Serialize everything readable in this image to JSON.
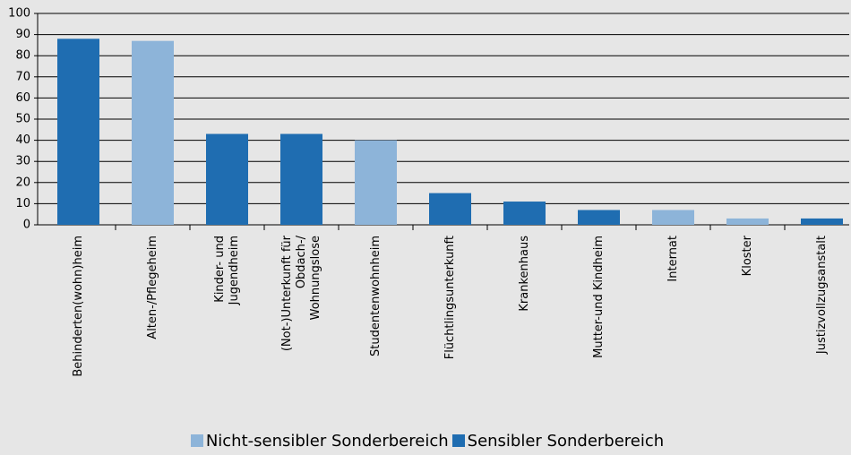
{
  "chart_data": {
    "type": "bar",
    "categories": [
      "Behinderten(wohn)heim",
      "Alten-/Pflegeheim",
      "Kinder- und\nJugendheim",
      "(Not-)Unterkunft für\nObdach-/\nWohnungslose",
      "Studentenwohnheim",
      "Flüchtlingsunterkunft",
      "Krankenhaus",
      "Mutter-und Kindheim",
      "Internat",
      "Kloster",
      "Justizvollzugsanstalt"
    ],
    "series": [
      {
        "name": "Nicht-sensibler Sonderbereich",
        "color": "#8db4d9",
        "values": [
          null,
          87,
          null,
          null,
          40,
          null,
          null,
          null,
          7,
          3,
          null
        ]
      },
      {
        "name": "Sensibler Sonderbereich",
        "color": "#1f6db1",
        "values": [
          88,
          null,
          43,
          43,
          null,
          15,
          11,
          7,
          null,
          null,
          3
        ]
      }
    ],
    "ylim": [
      0,
      100
    ],
    "yticks": [
      0,
      10,
      20,
      30,
      40,
      50,
      60,
      70,
      80,
      90,
      100
    ],
    "grid": true,
    "legend": "bottom"
  }
}
